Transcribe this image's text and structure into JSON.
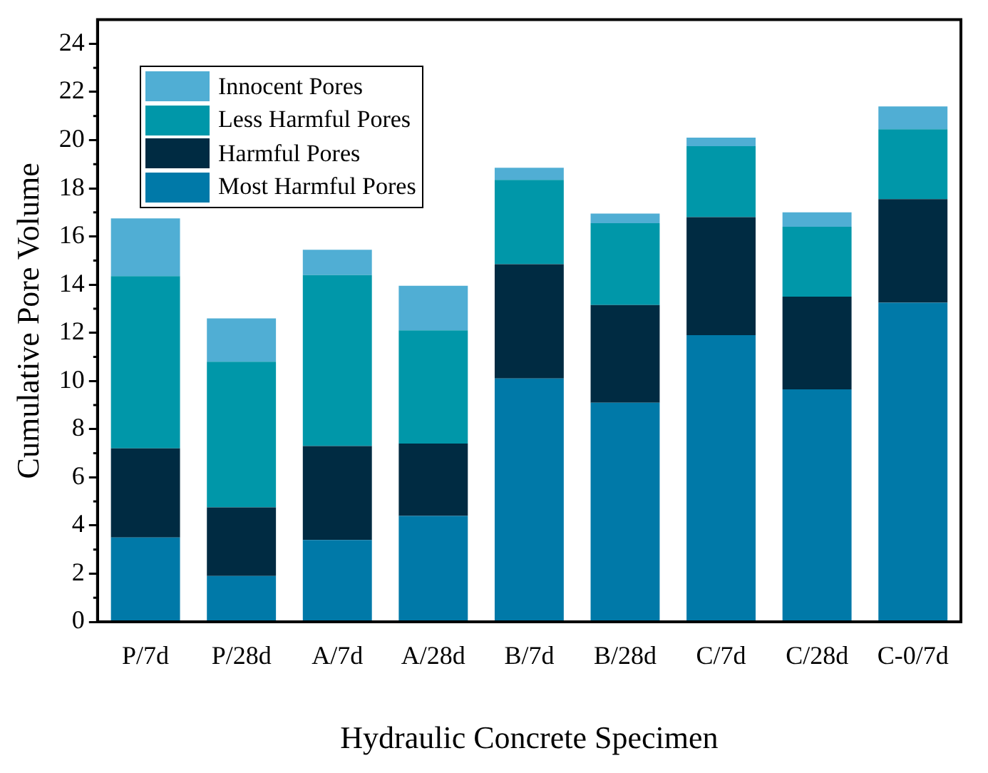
{
  "chart_data": {
    "type": "bar",
    "stacked": true,
    "xlabel": "Hydraulic Concrete Specimen",
    "ylabel": "Cumulative Pore Volume",
    "categories": [
      "P/7d",
      "P/28d",
      "A/7d",
      "A/28d",
      "B/7d",
      "B/28d",
      "C/7d",
      "C/28d",
      "C-0/7d"
    ],
    "series": [
      {
        "name": "Most Harmful Pores",
        "color": "#0079a8",
        "values": [
          3.5,
          1.9,
          3.4,
          4.4,
          10.1,
          9.1,
          11.9,
          9.65,
          13.25
        ]
      },
      {
        "name": "Harmful Pores",
        "color": "#002b42",
        "values": [
          3.7,
          2.85,
          3.9,
          3.0,
          4.75,
          4.05,
          4.9,
          3.85,
          4.3
        ]
      },
      {
        "name": "Less Harmful Pores",
        "color": "#0097a9",
        "values": [
          7.15,
          6.05,
          7.1,
          4.7,
          3.5,
          3.4,
          2.95,
          2.9,
          2.9
        ]
      },
      {
        "name": "Innocent Pores",
        "color": "#50aed4",
        "values": [
          2.4,
          1.8,
          1.05,
          1.85,
          0.5,
          0.4,
          0.35,
          0.6,
          0.95
        ]
      }
    ],
    "ylim": [
      0,
      25
    ],
    "yticks": [
      0,
      2,
      4,
      6,
      8,
      10,
      12,
      14,
      16,
      18,
      20,
      22,
      24
    ],
    "grid": false,
    "legend": "top left"
  }
}
